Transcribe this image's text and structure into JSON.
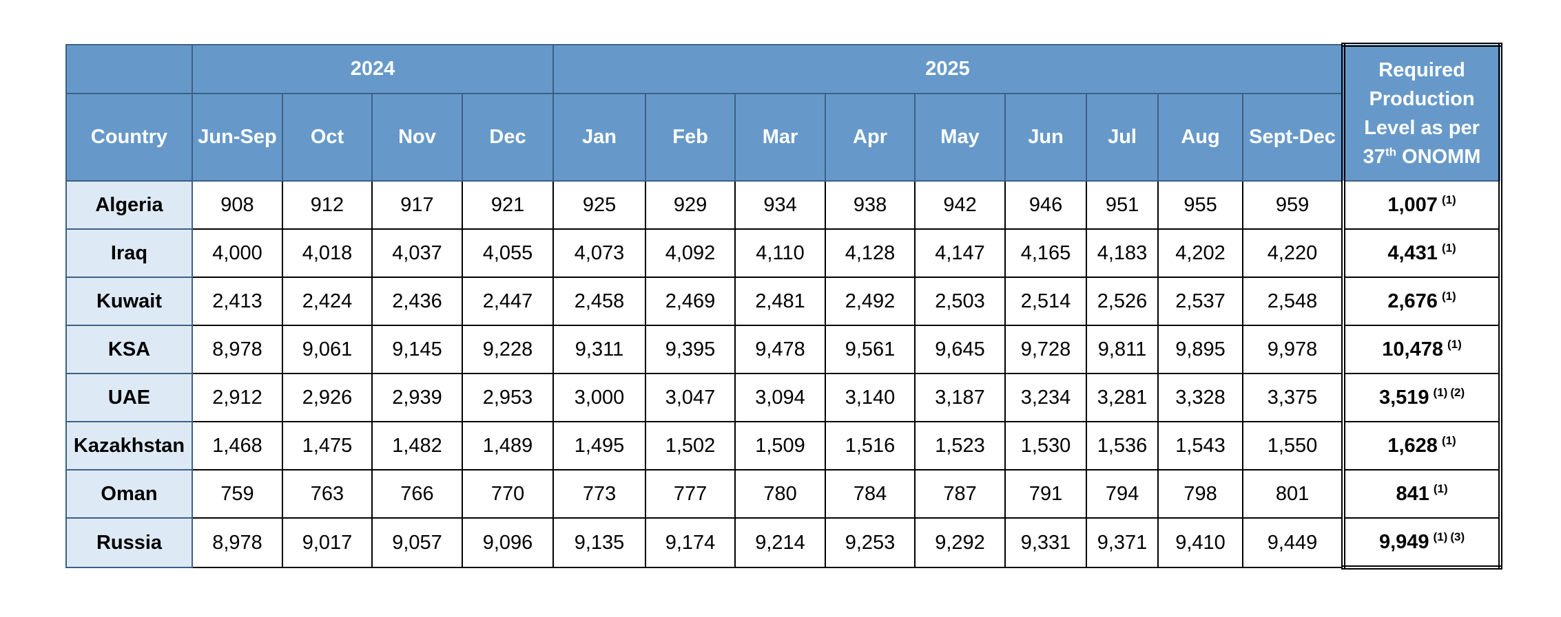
{
  "header": {
    "year_2024": "2024",
    "year_2025": "2025",
    "country": "Country",
    "months": [
      "Jun-Sep",
      "Oct",
      "Nov",
      "Dec",
      "Jan",
      "Feb",
      "Mar",
      "Apr",
      "May",
      "Jun",
      "Jul",
      "Aug",
      "Sept-Dec"
    ],
    "required": {
      "line1": "Required",
      "line2": "Production",
      "line3": "Level as per",
      "num": "37",
      "sup": "th",
      "tail": "ONOMM"
    }
  },
  "rows": [
    {
      "country": "Algeria",
      "values": [
        "908",
        "912",
        "917",
        "921",
        "925",
        "929",
        "934",
        "938",
        "942",
        "946",
        "951",
        "955",
        "959"
      ],
      "required": "1,007",
      "notes": [
        "(1)"
      ]
    },
    {
      "country": "Iraq",
      "values": [
        "4,000",
        "4,018",
        "4,037",
        "4,055",
        "4,073",
        "4,092",
        "4,110",
        "4,128",
        "4,147",
        "4,165",
        "4,183",
        "4,202",
        "4,220"
      ],
      "required": "4,431",
      "notes": [
        "(1)"
      ]
    },
    {
      "country": "Kuwait",
      "values": [
        "2,413",
        "2,424",
        "2,436",
        "2,447",
        "2,458",
        "2,469",
        "2,481",
        "2,492",
        "2,503",
        "2,514",
        "2,526",
        "2,537",
        "2,548"
      ],
      "required": "2,676",
      "notes": [
        "(1)"
      ]
    },
    {
      "country": "KSA",
      "values": [
        "8,978",
        "9,061",
        "9,145",
        "9,228",
        "9,311",
        "9,395",
        "9,478",
        "9,561",
        "9,645",
        "9,728",
        "9,811",
        "9,895",
        "9,978"
      ],
      "required": "10,478",
      "notes": [
        "(1)"
      ]
    },
    {
      "country": "UAE",
      "values": [
        "2,912",
        "2,926",
        "2,939",
        "2,953",
        "3,000",
        "3,047",
        "3,094",
        "3,140",
        "3,187",
        "3,234",
        "3,281",
        "3,328",
        "3,375"
      ],
      "required": "3,519",
      "notes": [
        "(1)",
        "(2)"
      ]
    },
    {
      "country": "Kazakhstan",
      "values": [
        "1,468",
        "1,475",
        "1,482",
        "1,489",
        "1,495",
        "1,502",
        "1,509",
        "1,516",
        "1,523",
        "1,530",
        "1,536",
        "1,543",
        "1,550"
      ],
      "required": "1,628",
      "notes": [
        "(1)"
      ]
    },
    {
      "country": "Oman",
      "values": [
        "759",
        "763",
        "766",
        "770",
        "773",
        "777",
        "780",
        "784",
        "787",
        "791",
        "794",
        "798",
        "801"
      ],
      "required": "841",
      "notes": [
        "(1)"
      ]
    },
    {
      "country": "Russia",
      "values": [
        "8,978",
        "9,017",
        "9,057",
        "9,096",
        "9,135",
        "9,174",
        "9,214",
        "9,253",
        "9,292",
        "9,331",
        "9,371",
        "9,410",
        "9,449"
      ],
      "required": "9,949",
      "notes": [
        "(1)",
        "(3)"
      ]
    }
  ]
}
